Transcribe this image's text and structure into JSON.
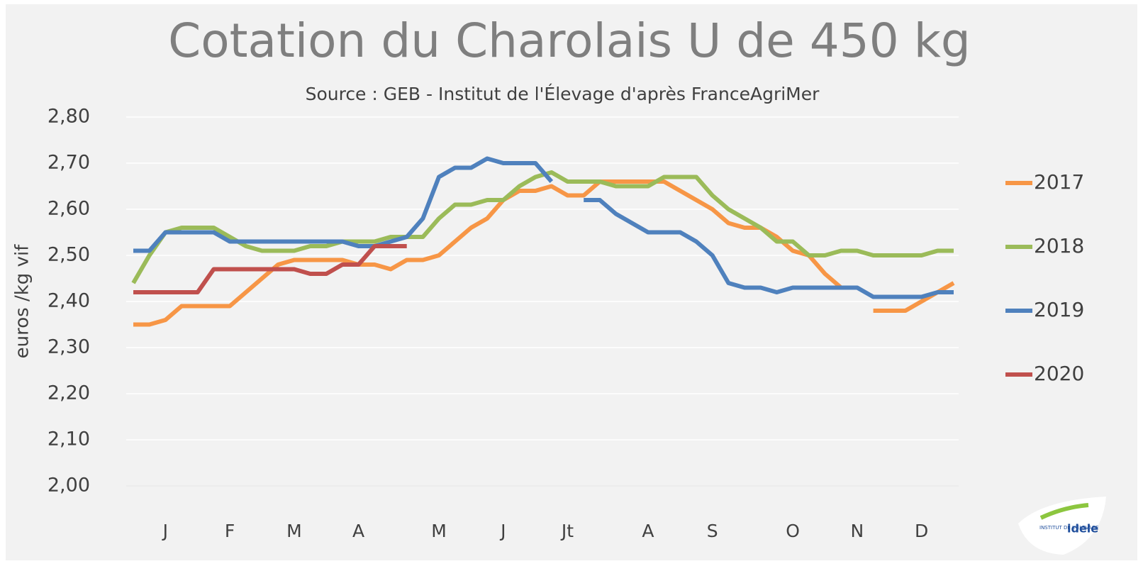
{
  "chart_data": {
    "type": "line",
    "title": "Cotation du Charolais U de 450 kg",
    "subtitle": "Source : GEB - Institut de l'Élevage d'après FranceAgriMer",
    "y_label": "euros /kg vif",
    "logo": {
      "top": "INSTITUT DE L'ÉLEVAGE",
      "name": "idele"
    },
    "categories": [
      null,
      null,
      "J",
      null,
      null,
      null,
      "F",
      null,
      null,
      null,
      "M",
      null,
      null,
      null,
      "A",
      null,
      null,
      null,
      null,
      "M",
      null,
      null,
      null,
      "J",
      null,
      null,
      null,
      "Jt",
      null,
      null,
      null,
      null,
      "A",
      null,
      null,
      null,
      "S",
      null,
      null,
      null,
      null,
      "O",
      null,
      null,
      null,
      "N",
      null,
      null,
      null,
      "D",
      null,
      null
    ],
    "ylim": [
      2.0,
      2.8
    ],
    "yticks": [
      {
        "value": 2.0,
        "label": "2,00"
      },
      {
        "value": 2.1,
        "label": "2,10"
      },
      {
        "value": 2.2,
        "label": "2,20"
      },
      {
        "value": 2.3,
        "label": "2,30"
      },
      {
        "value": 2.4,
        "label": "2,40"
      },
      {
        "value": 2.5,
        "label": "2,50"
      },
      {
        "value": 2.6,
        "label": "2,60"
      },
      {
        "value": 2.7,
        "label": "2,70"
      },
      {
        "value": 2.8,
        "label": "2,80"
      }
    ],
    "grid": true,
    "legend": "right",
    "series": [
      {
        "name": "2017",
        "color": "#f79646",
        "values": [
          2.35,
          2.35,
          2.36,
          2.39,
          2.39,
          2.39,
          2.39,
          2.42,
          2.45,
          2.48,
          2.49,
          2.49,
          2.49,
          2.49,
          2.48,
          2.48,
          2.47,
          2.49,
          2.49,
          2.5,
          2.53,
          2.56,
          2.58,
          2.62,
          2.64,
          2.64,
          2.65,
          2.63,
          2.63,
          2.66,
          2.66,
          2.66,
          2.66,
          2.66,
          2.64,
          2.62,
          2.6,
          2.57,
          2.56,
          2.56,
          2.54,
          2.51,
          2.5,
          2.46,
          2.43,
          null,
          2.38,
          2.38,
          2.38,
          2.4,
          2.42,
          2.44
        ]
      },
      {
        "name": "2018",
        "color": "#9bbb59",
        "values": [
          2.44,
          2.5,
          2.55,
          2.56,
          2.56,
          2.56,
          2.54,
          2.52,
          2.51,
          2.51,
          2.51,
          2.52,
          2.52,
          2.53,
          2.53,
          2.53,
          2.54,
          2.54,
          2.54,
          2.58,
          2.61,
          2.61,
          2.62,
          2.62,
          2.65,
          2.67,
          2.68,
          2.66,
          2.66,
          2.66,
          2.65,
          2.65,
          2.65,
          2.67,
          2.67,
          2.67,
          2.63,
          2.6,
          2.58,
          2.56,
          2.53,
          2.53,
          2.5,
          2.5,
          2.51,
          2.51,
          2.5,
          2.5,
          2.5,
          2.5,
          2.51,
          2.51
        ]
      },
      {
        "name": "2019",
        "color": "#4f81bd",
        "values": [
          2.51,
          2.51,
          2.55,
          2.55,
          2.55,
          2.55,
          2.53,
          2.53,
          2.53,
          2.53,
          2.53,
          2.53,
          2.53,
          2.53,
          2.52,
          2.52,
          2.53,
          2.54,
          2.58,
          2.67,
          2.69,
          2.69,
          2.71,
          2.7,
          2.7,
          2.7,
          2.66,
          null,
          2.62,
          2.62,
          2.59,
          2.57,
          2.55,
          2.55,
          2.55,
          2.53,
          2.5,
          2.44,
          2.43,
          2.43,
          2.42,
          2.43,
          2.43,
          2.43,
          2.43,
          2.43,
          2.41,
          2.41,
          2.41,
          2.41,
          2.42,
          2.42
        ]
      },
      {
        "name": "2020",
        "color": "#c0504d",
        "values": [
          2.42,
          2.42,
          2.42,
          2.42,
          2.42,
          2.47,
          2.47,
          2.47,
          2.47,
          2.47,
          2.47,
          2.46,
          2.46,
          2.48,
          2.48,
          2.52,
          2.52,
          2.52,
          null,
          null,
          null,
          null,
          null,
          null,
          null,
          null,
          null,
          null,
          null,
          null,
          null,
          null,
          null,
          null,
          null,
          null,
          null,
          null,
          null,
          null,
          null,
          null,
          null,
          null,
          null,
          null,
          null,
          null,
          null,
          null,
          null,
          null
        ]
      }
    ]
  }
}
